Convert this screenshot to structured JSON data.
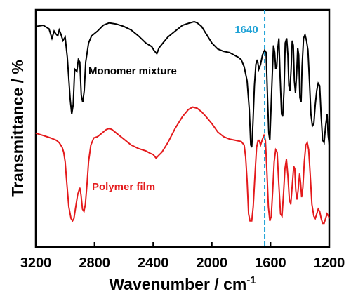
{
  "chart_data": {
    "type": "line",
    "xlabel": "Wavenumber / cm",
    "xlabel_sup": "-1",
    "ylabel": "Transmittance / %",
    "xlim": [
      3200,
      1200
    ],
    "x_reversed": true,
    "y_ticks_shown": false,
    "grid": false,
    "x_ticks": [
      3200,
      2800,
      2400,
      2000,
      1600,
      1200
    ],
    "x_tick_labels": [
      "3200",
      "2800",
      "2400",
      "2000",
      "1600",
      "1200"
    ],
    "reference_line": {
      "x": 1640,
      "label": "1640",
      "style": "dashed",
      "color": "#1fa2d6"
    },
    "series": [
      {
        "name": "Monomer mixture",
        "color": "#000000",
        "points": [
          [
            3200,
            0.93
          ],
          [
            3150,
            0.935
          ],
          [
            3110,
            0.92
          ],
          [
            3090,
            0.88
          ],
          [
            3075,
            0.91
          ],
          [
            3065,
            0.9
          ],
          [
            3050,
            0.89
          ],
          [
            3040,
            0.915
          ],
          [
            3030,
            0.9
          ],
          [
            3015,
            0.87
          ],
          [
            3000,
            0.885
          ],
          [
            2985,
            0.8
          ],
          [
            2965,
            0.62
          ],
          [
            2955,
            0.56
          ],
          [
            2945,
            0.6
          ],
          [
            2935,
            0.75
          ],
          [
            2920,
            0.74
          ],
          [
            2910,
            0.79
          ],
          [
            2900,
            0.78
          ],
          [
            2890,
            0.64
          ],
          [
            2880,
            0.61
          ],
          [
            2870,
            0.66
          ],
          [
            2860,
            0.78
          ],
          [
            2840,
            0.86
          ],
          [
            2820,
            0.89
          ],
          [
            2780,
            0.91
          ],
          [
            2740,
            0.935
          ],
          [
            2700,
            0.945
          ],
          [
            2650,
            0.94
          ],
          [
            2600,
            0.93
          ],
          [
            2550,
            0.915
          ],
          [
            2500,
            0.89
          ],
          [
            2450,
            0.86
          ],
          [
            2410,
            0.845
          ],
          [
            2395,
            0.83
          ],
          [
            2375,
            0.815
          ],
          [
            2360,
            0.84
          ],
          [
            2340,
            0.855
          ],
          [
            2300,
            0.885
          ],
          [
            2250,
            0.91
          ],
          [
            2200,
            0.935
          ],
          [
            2150,
            0.945
          ],
          [
            2120,
            0.95
          ],
          [
            2100,
            0.945
          ],
          [
            2070,
            0.93
          ],
          [
            2040,
            0.9
          ],
          [
            2000,
            0.86
          ],
          [
            1960,
            0.835
          ],
          [
            1920,
            0.825
          ],
          [
            1880,
            0.82
          ],
          [
            1850,
            0.81
          ],
          [
            1820,
            0.8
          ],
          [
            1800,
            0.79
          ],
          [
            1780,
            0.76
          ],
          [
            1760,
            0.7
          ],
          [
            1745,
            0.58
          ],
          [
            1735,
            0.43
          ],
          [
            1728,
            0.42
          ],
          [
            1720,
            0.52
          ],
          [
            1710,
            0.68
          ],
          [
            1700,
            0.77
          ],
          [
            1690,
            0.79
          ],
          [
            1680,
            0.75
          ],
          [
            1668,
            0.77
          ],
          [
            1655,
            0.81
          ],
          [
            1640,
            0.83
          ],
          [
            1630,
            0.82
          ],
          [
            1620,
            0.62
          ],
          [
            1612,
            0.48
          ],
          [
            1605,
            0.45
          ],
          [
            1597,
            0.58
          ],
          [
            1588,
            0.73
          ],
          [
            1580,
            0.85
          ],
          [
            1572,
            0.82
          ],
          [
            1565,
            0.75
          ],
          [
            1558,
            0.76
          ],
          [
            1550,
            0.84
          ],
          [
            1543,
            0.88
          ],
          [
            1535,
            0.72
          ],
          [
            1525,
            0.56
          ],
          [
            1517,
            0.55
          ],
          [
            1508,
            0.66
          ],
          [
            1500,
            0.86
          ],
          [
            1490,
            0.88
          ],
          [
            1482,
            0.81
          ],
          [
            1475,
            0.68
          ],
          [
            1468,
            0.66
          ],
          [
            1460,
            0.75
          ],
          [
            1452,
            0.87
          ],
          [
            1445,
            0.85
          ],
          [
            1438,
            0.7
          ],
          [
            1430,
            0.65
          ],
          [
            1422,
            0.73
          ],
          [
            1415,
            0.84
          ],
          [
            1408,
            0.81
          ],
          [
            1400,
            0.63
          ],
          [
            1392,
            0.61
          ],
          [
            1385,
            0.76
          ],
          [
            1375,
            0.88
          ],
          [
            1365,
            0.895
          ],
          [
            1355,
            0.87
          ],
          [
            1345,
            0.83
          ],
          [
            1335,
            0.7
          ],
          [
            1325,
            0.56
          ],
          [
            1315,
            0.51
          ],
          [
            1305,
            0.52
          ],
          [
            1295,
            0.6
          ],
          [
            1285,
            0.66
          ],
          [
            1275,
            0.69
          ],
          [
            1265,
            0.68
          ],
          [
            1255,
            0.55
          ],
          [
            1245,
            0.45
          ],
          [
            1235,
            0.44
          ],
          [
            1225,
            0.51
          ],
          [
            1215,
            0.56
          ],
          [
            1207,
            0.47
          ],
          [
            1200,
            0.43
          ]
        ]
      },
      {
        "name": "Polymer film",
        "color": "#e41a1c",
        "points": [
          [
            3200,
            0.48
          ],
          [
            3150,
            0.47
          ],
          [
            3100,
            0.46
          ],
          [
            3080,
            0.455
          ],
          [
            3060,
            0.45
          ],
          [
            3040,
            0.44
          ],
          [
            3030,
            0.43
          ],
          [
            3020,
            0.42
          ],
          [
            3010,
            0.4
          ],
          [
            3000,
            0.36
          ],
          [
            2990,
            0.28
          ],
          [
            2975,
            0.17
          ],
          [
            2960,
            0.12
          ],
          [
            2950,
            0.11
          ],
          [
            2940,
            0.12
          ],
          [
            2930,
            0.16
          ],
          [
            2915,
            0.22
          ],
          [
            2900,
            0.25
          ],
          [
            2892,
            0.22
          ],
          [
            2882,
            0.16
          ],
          [
            2872,
            0.15
          ],
          [
            2862,
            0.18
          ],
          [
            2850,
            0.27
          ],
          [
            2840,
            0.36
          ],
          [
            2825,
            0.43
          ],
          [
            2805,
            0.46
          ],
          [
            2780,
            0.465
          ],
          [
            2750,
            0.48
          ],
          [
            2720,
            0.495
          ],
          [
            2700,
            0.5
          ],
          [
            2680,
            0.495
          ],
          [
            2650,
            0.48
          ],
          [
            2600,
            0.455
          ],
          [
            2550,
            0.43
          ],
          [
            2500,
            0.415
          ],
          [
            2450,
            0.405
          ],
          [
            2420,
            0.395
          ],
          [
            2400,
            0.39
          ],
          [
            2380,
            0.375
          ],
          [
            2365,
            0.385
          ],
          [
            2340,
            0.4
          ],
          [
            2300,
            0.44
          ],
          [
            2250,
            0.5
          ],
          [
            2200,
            0.55
          ],
          [
            2160,
            0.58
          ],
          [
            2130,
            0.59
          ],
          [
            2100,
            0.585
          ],
          [
            2070,
            0.57
          ],
          [
            2040,
            0.55
          ],
          [
            2000,
            0.52
          ],
          [
            1960,
            0.485
          ],
          [
            1920,
            0.465
          ],
          [
            1880,
            0.455
          ],
          [
            1840,
            0.45
          ],
          [
            1800,
            0.445
          ],
          [
            1780,
            0.43
          ],
          [
            1770,
            0.38
          ],
          [
            1760,
            0.28
          ],
          [
            1750,
            0.14
          ],
          [
            1740,
            0.11
          ],
          [
            1728,
            0.11
          ],
          [
            1718,
            0.17
          ],
          [
            1705,
            0.32
          ],
          [
            1695,
            0.42
          ],
          [
            1685,
            0.45
          ],
          [
            1678,
            0.45
          ],
          [
            1668,
            0.43
          ],
          [
            1655,
            0.455
          ],
          [
            1645,
            0.47
          ],
          [
            1635,
            0.45
          ],
          [
            1625,
            0.32
          ],
          [
            1615,
            0.17
          ],
          [
            1605,
            0.11
          ],
          [
            1595,
            0.13
          ],
          [
            1585,
            0.24
          ],
          [
            1575,
            0.36
          ],
          [
            1565,
            0.41
          ],
          [
            1555,
            0.4
          ],
          [
            1545,
            0.28
          ],
          [
            1532,
            0.14
          ],
          [
            1522,
            0.13
          ],
          [
            1512,
            0.22
          ],
          [
            1502,
            0.33
          ],
          [
            1492,
            0.37
          ],
          [
            1482,
            0.3
          ],
          [
            1472,
            0.2
          ],
          [
            1462,
            0.18
          ],
          [
            1452,
            0.26
          ],
          [
            1442,
            0.34
          ],
          [
            1435,
            0.33
          ],
          [
            1428,
            0.24
          ],
          [
            1420,
            0.2
          ],
          [
            1412,
            0.24
          ],
          [
            1402,
            0.31
          ],
          [
            1395,
            0.27
          ],
          [
            1388,
            0.21
          ],
          [
            1380,
            0.25
          ],
          [
            1370,
            0.36
          ],
          [
            1360,
            0.43
          ],
          [
            1350,
            0.44
          ],
          [
            1340,
            0.41
          ],
          [
            1330,
            0.31
          ],
          [
            1318,
            0.18
          ],
          [
            1305,
            0.13
          ],
          [
            1295,
            0.12
          ],
          [
            1285,
            0.14
          ],
          [
            1275,
            0.16
          ],
          [
            1265,
            0.15
          ],
          [
            1255,
            0.12
          ],
          [
            1245,
            0.1
          ],
          [
            1235,
            0.1
          ],
          [
            1225,
            0.12
          ],
          [
            1215,
            0.14
          ],
          [
            1205,
            0.13
          ],
          [
            1200,
            0.12
          ]
        ]
      }
    ]
  }
}
